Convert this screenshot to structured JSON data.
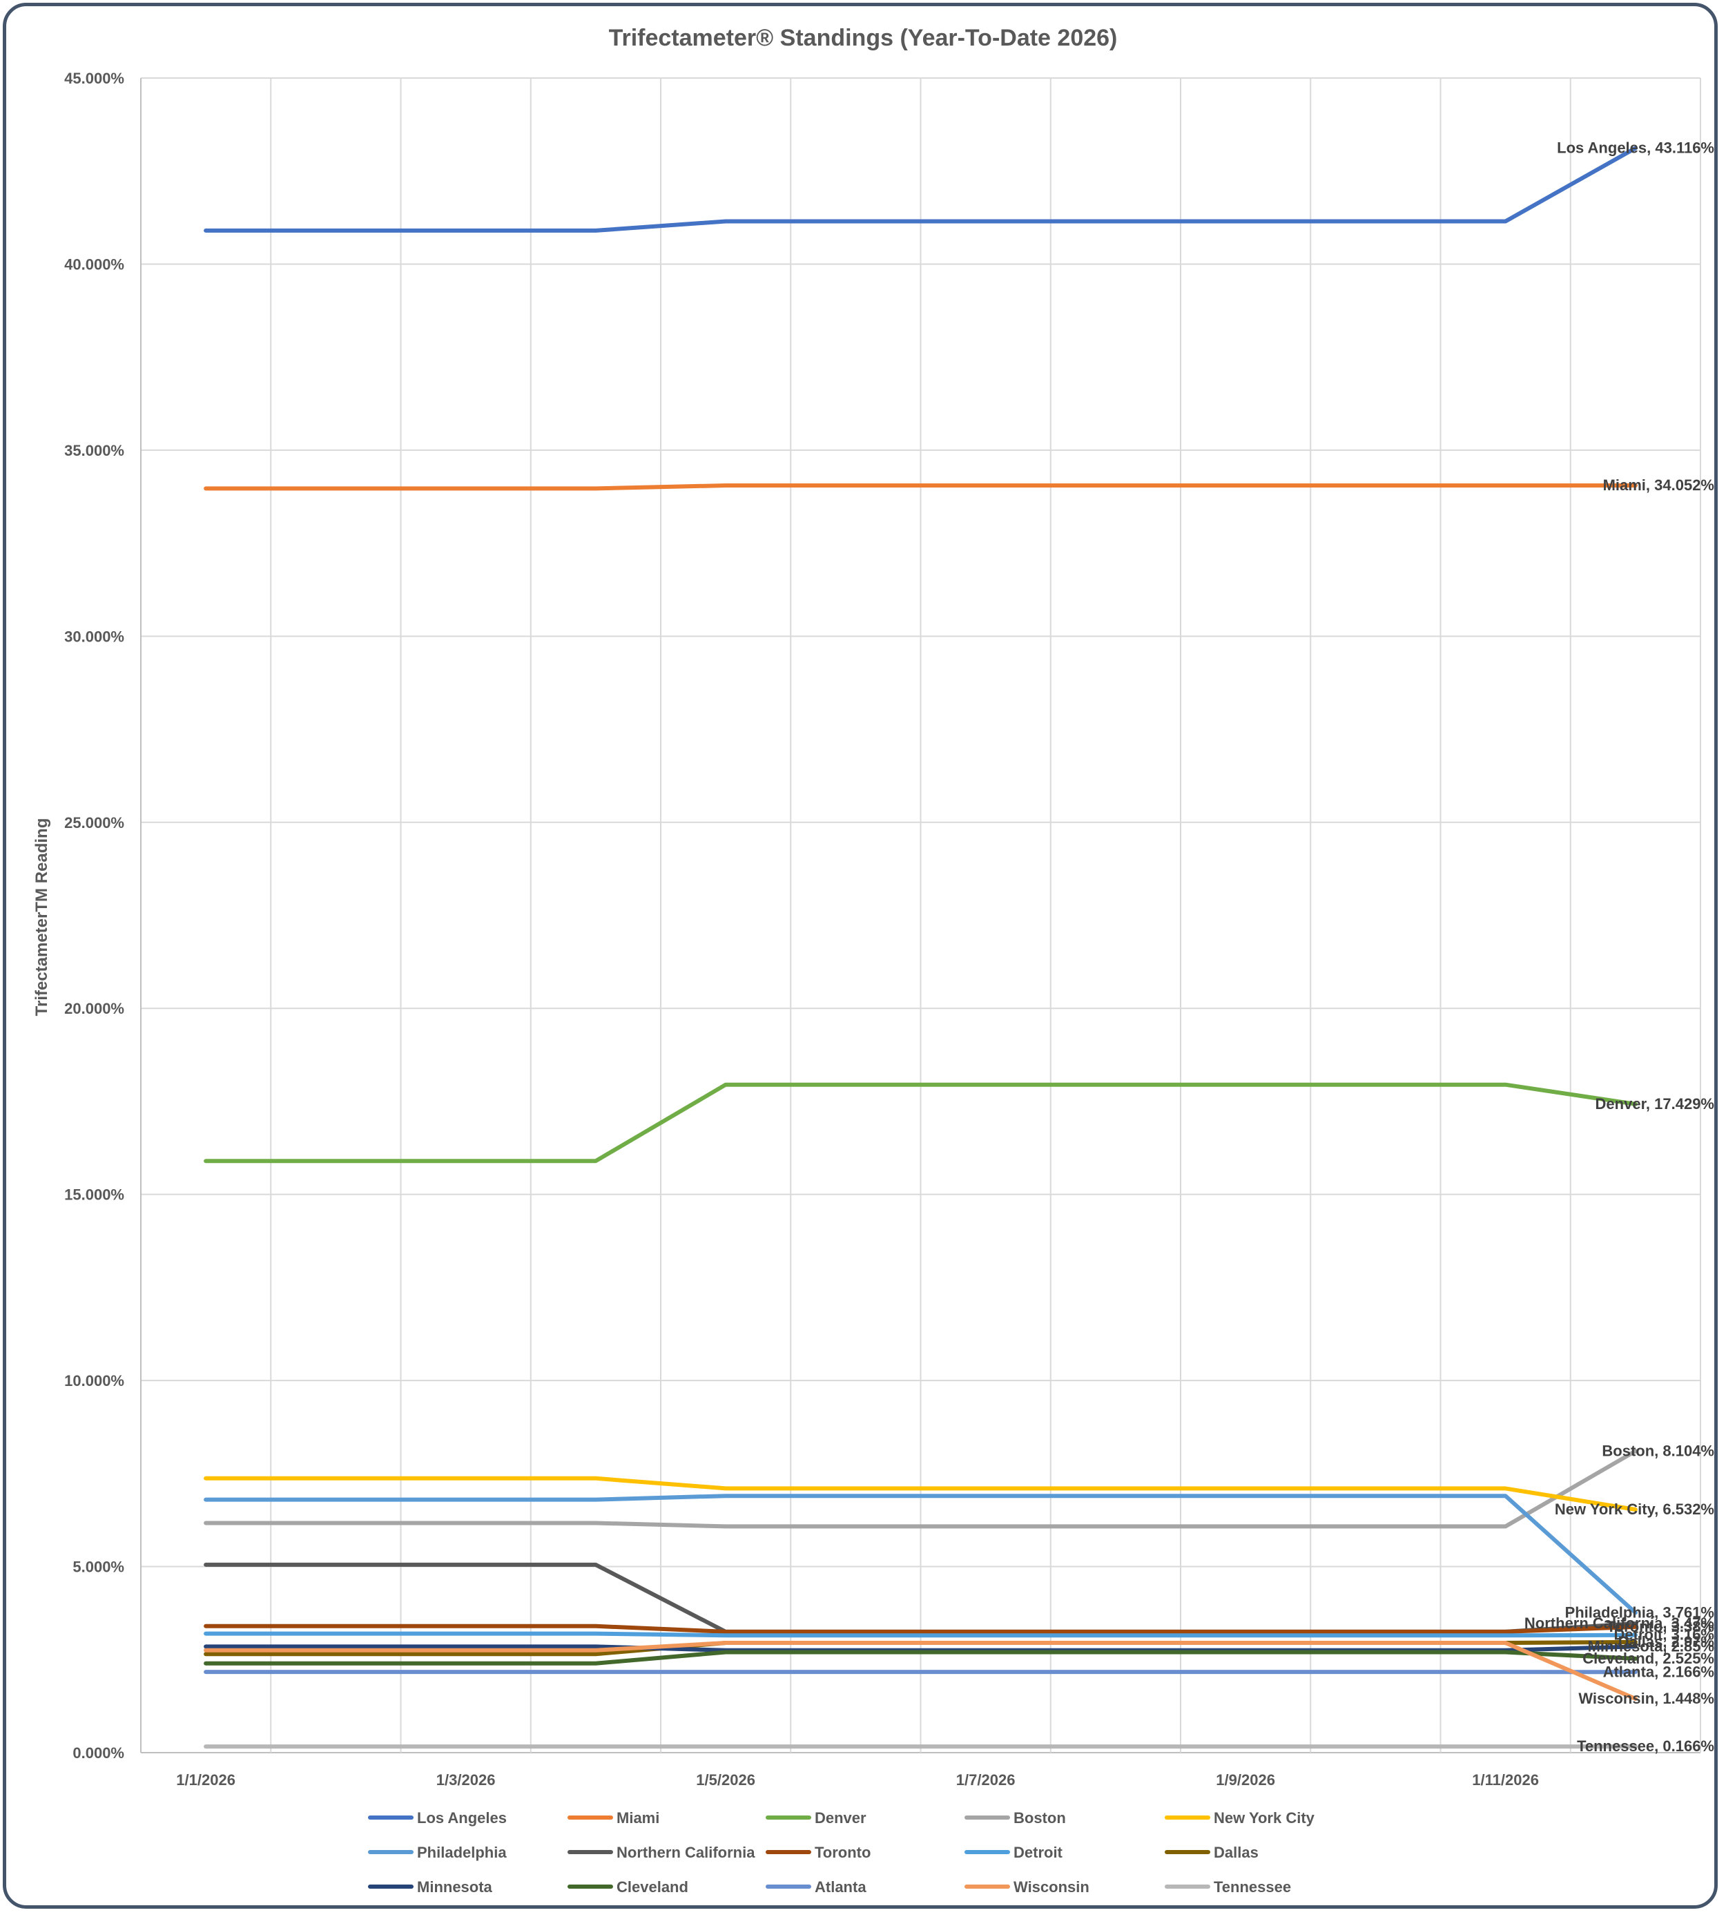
{
  "chart_data": {
    "type": "line",
    "title": "Trifectameter® Standings (Year-To-Date 2026)",
    "ylabel": "TrifectameterTM Reading",
    "xlabel": "",
    "ylim": [
      0,
      45
    ],
    "y_ticks": [
      "0.000%",
      "5.000%",
      "10.000%",
      "15.000%",
      "20.000%",
      "25.000%",
      "30.000%",
      "35.000%",
      "40.000%",
      "45.000%"
    ],
    "y_tick_values": [
      0,
      5,
      10,
      15,
      20,
      25,
      30,
      35,
      40,
      45
    ],
    "x_tick_labels": [
      "1/1/2026",
      "1/3/2026",
      "1/5/2026",
      "1/7/2026",
      "1/9/2026",
      "1/11/2026"
    ],
    "x_tick_days": [
      1,
      3,
      5,
      7,
      9,
      11
    ],
    "x_range_days": [
      0.5,
      12.5
    ],
    "x_days": [
      1,
      4,
      5,
      11,
      12
    ],
    "grid": true,
    "legend_position": "bottom",
    "series": [
      {
        "name": "Los Angeles",
        "color": "#4472c4",
        "values": [
          40.9,
          40.9,
          41.15,
          41.15,
          43.116
        ],
        "end_label": "Los Angeles, 43.116%"
      },
      {
        "name": "Miami",
        "color": "#ed7d31",
        "values": [
          33.97,
          33.97,
          34.052,
          34.052,
          34.052
        ],
        "end_label": "Miami, 34.052%"
      },
      {
        "name": "Denver",
        "color": "#70ad47",
        "values": [
          15.9,
          15.9,
          17.95,
          17.95,
          17.429
        ],
        "end_label": "Denver, 17.429%"
      },
      {
        "name": "Boston",
        "color": "#a5a5a5",
        "values": [
          6.17,
          6.17,
          6.08,
          6.08,
          8.104
        ],
        "end_label": "Boston, 8.104%"
      },
      {
        "name": "New York City",
        "color": "#ffc000",
        "values": [
          7.37,
          7.37,
          7.1,
          7.1,
          6.532
        ],
        "end_label": "New York City, 6.532%"
      },
      {
        "name": "Philadelphia",
        "color": "#5b9bd5",
        "values": [
          6.8,
          6.8,
          6.9,
          6.9,
          3.761
        ],
        "end_label": "Philadelphia, 3.761%"
      },
      {
        "name": "Northern California",
        "color": "#595959",
        "values": [
          5.05,
          5.05,
          3.25,
          3.25,
          3.47
        ],
        "end_label": "Northern California, 3.47%"
      },
      {
        "name": "Toronto",
        "color": "#9e480e",
        "values": [
          3.4,
          3.4,
          3.25,
          3.25,
          3.38
        ],
        "end_label": "Toronto, 3.38%"
      },
      {
        "name": "Detroit",
        "color": "#4f9fdc",
        "values": [
          3.2,
          3.2,
          3.15,
          3.15,
          3.16
        ],
        "end_label": "Detroit, 3.16%"
      },
      {
        "name": "Dallas",
        "color": "#806000",
        "values": [
          2.65,
          2.65,
          2.95,
          2.95,
          2.97
        ],
        "end_label": "Dallas, 2.97%"
      },
      {
        "name": "Minnesota",
        "color": "#264478",
        "values": [
          2.85,
          2.85,
          2.75,
          2.75,
          2.85
        ],
        "end_label": "Minnesota, 2.85%"
      },
      {
        "name": "Cleveland",
        "color": "#43682b",
        "values": [
          2.4,
          2.4,
          2.7,
          2.7,
          2.525
        ],
        "end_label": "Cleveland, 2.525%"
      },
      {
        "name": "Atlanta",
        "color": "#698ed0",
        "values": [
          2.17,
          2.17,
          2.17,
          2.17,
          2.166
        ],
        "end_label": "Atlanta, 2.166%"
      },
      {
        "name": "Wisconsin",
        "color": "#f1975a",
        "values": [
          2.75,
          2.75,
          2.95,
          2.95,
          1.448
        ],
        "end_label": "Wisconsin, 1.448%"
      },
      {
        "name": "Tennessee",
        "color": "#b7b7b7",
        "values": [
          0.166,
          0.166,
          0.166,
          0.166,
          0.166
        ],
        "end_label": "Tennessee, 0.166%"
      }
    ]
  }
}
